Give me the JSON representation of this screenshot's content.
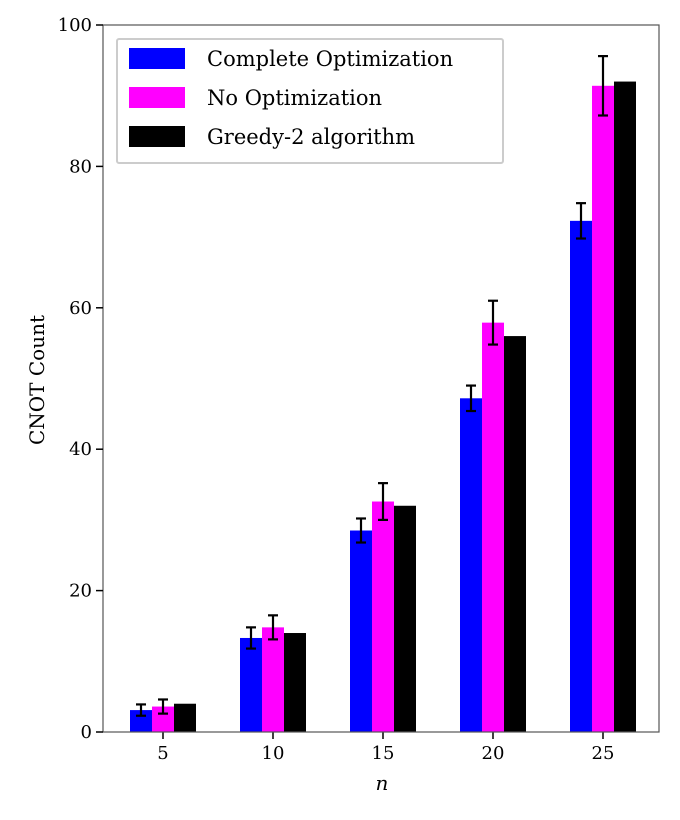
{
  "chart_data": {
    "type": "bar",
    "xlabel": "n",
    "ylabel": "CNOT Count",
    "categories": [
      "5",
      "10",
      "15",
      "20",
      "25"
    ],
    "ylim": [
      0,
      100
    ],
    "yticks": [
      0,
      20,
      40,
      60,
      80,
      100
    ],
    "grid": false,
    "legend_position": "top-left",
    "series": [
      {
        "name": "Complete Optimization",
        "color": "#0000ff",
        "values": [
          3.1,
          13.3,
          28.5,
          47.2,
          72.3
        ],
        "errors": [
          0.8,
          1.5,
          1.7,
          1.8,
          2.5
        ]
      },
      {
        "name": "No Optimization",
        "color": "#ff00ff",
        "values": [
          3.6,
          14.8,
          32.6,
          57.9,
          91.4
        ],
        "errors": [
          1.0,
          1.7,
          2.6,
          3.1,
          4.2
        ]
      },
      {
        "name": "Greedy-2 algorithm",
        "color": "#000000",
        "values": [
          4,
          14,
          32,
          56,
          92
        ],
        "errors": null
      }
    ]
  }
}
